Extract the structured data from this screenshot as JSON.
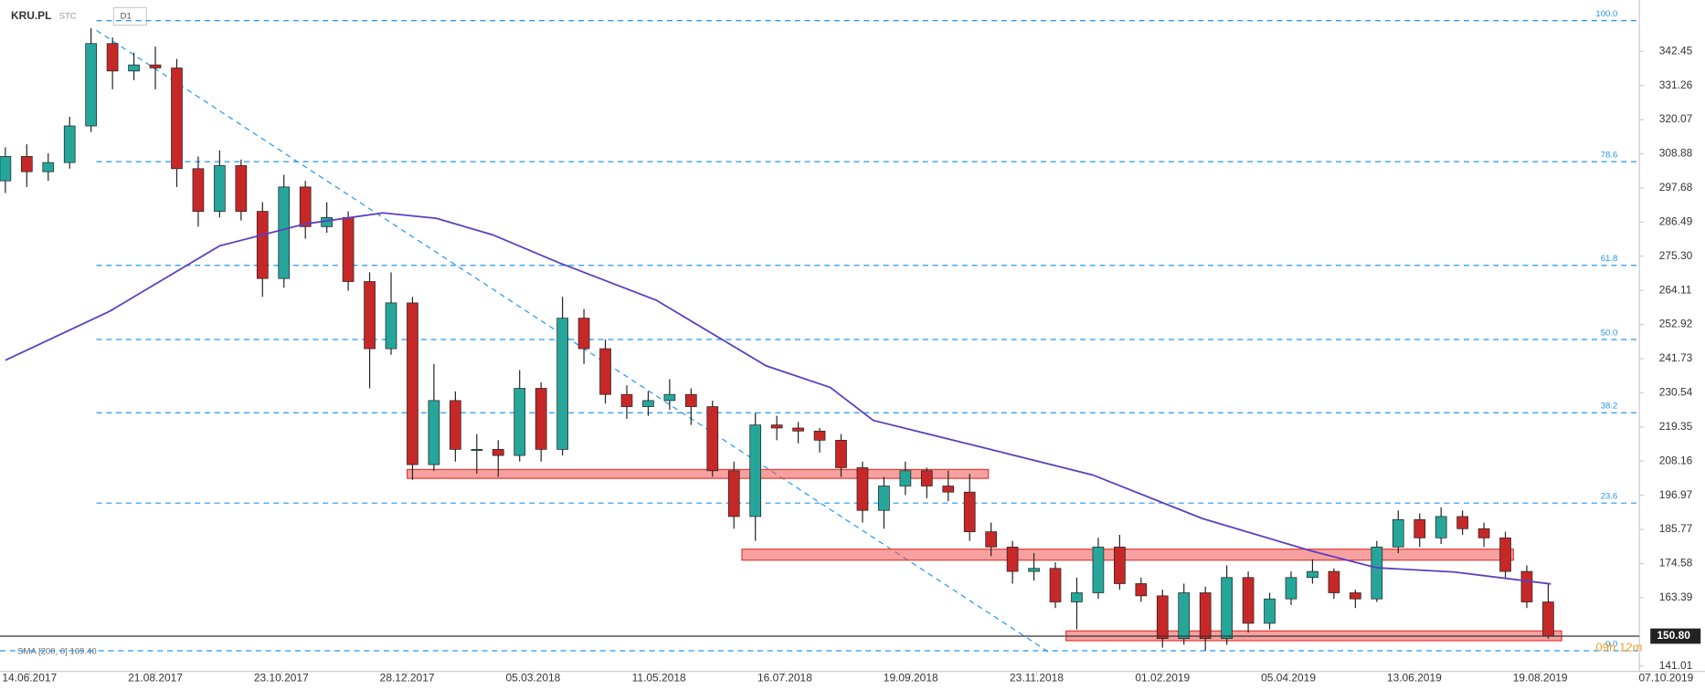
{
  "chart_data": {
    "type": "candlestick",
    "symbol": "KRU.PL",
    "source": "STC",
    "interval": "D1",
    "sma": {
      "name": "SMA [200, 0] 169.40",
      "color": "#5b3fc4",
      "x": [
        2,
        41,
        82,
        114,
        143,
        163,
        184,
        208,
        245,
        286,
        310,
        326,
        367,
        408,
        449,
        490,
        514,
        543,
        579
      ],
      "values": [
        241.2,
        257.3,
        278.7,
        285.9,
        289.5,
        287.7,
        282.3,
        273.4,
        260.9,
        239.4,
        232.3,
        221.5,
        212.6,
        203.6,
        189.3,
        178.6,
        173.2,
        171.8,
        167.9
      ]
    },
    "x": [
      2,
      10,
      18,
      26,
      34,
      42,
      50,
      58,
      66,
      74,
      82,
      90,
      98,
      106,
      114,
      122,
      130,
      138,
      146,
      154,
      162,
      170,
      178,
      186,
      194,
      202,
      210,
      218,
      226,
      234,
      242,
      250,
      258,
      266,
      274,
      282,
      290,
      298,
      306,
      314,
      322,
      330,
      338,
      346,
      354,
      362,
      370,
      378,
      386,
      394,
      402,
      410,
      418,
      426,
      434,
      442,
      450,
      458,
      466,
      474,
      482,
      490,
      498,
      506,
      514,
      522,
      530,
      538,
      546,
      554,
      562,
      570,
      578
    ],
    "open": [
      300,
      308,
      303,
      306,
      318,
      345,
      336,
      338,
      337,
      304,
      290,
      305,
      290,
      268,
      298,
      285,
      288,
      267,
      245,
      260,
      207,
      228,
      212,
      212,
      210,
      232,
      212,
      255,
      245,
      230,
      226,
      228,
      230,
      226,
      205,
      190,
      220,
      219,
      218,
      215,
      206,
      192,
      200,
      205,
      200,
      198,
      185,
      180,
      172,
      173,
      162,
      165,
      180,
      168,
      164,
      150,
      165,
      150,
      170,
      155,
      163,
      170,
      172,
      165,
      163,
      180,
      189,
      183,
      190,
      186,
      183,
      172,
      162
    ],
    "high": [
      311,
      312,
      309,
      321,
      350,
      347,
      342,
      344,
      340,
      308,
      310,
      307,
      293,
      302,
      300,
      293,
      290,
      270,
      270,
      262,
      240,
      231,
      217,
      215,
      238,
      234,
      262,
      258,
      248,
      233,
      231,
      235,
      232,
      228,
      208,
      224,
      223,
      221,
      219,
      217,
      208,
      203,
      208,
      206,
      205,
      204,
      188,
      182,
      178,
      175,
      170,
      183,
      184,
      170,
      166,
      168,
      167,
      174,
      172,
      165,
      172,
      176,
      173,
      166,
      182,
      192,
      191,
      193,
      192,
      188,
      185,
      174,
      168
    ],
    "low": [
      296,
      298,
      300,
      304,
      316,
      330,
      333,
      330,
      298,
      285,
      288,
      287,
      262,
      265,
      281,
      283,
      264,
      232,
      243,
      202,
      205,
      208,
      204,
      203,
      208,
      208,
      210,
      240,
      227,
      222,
      223,
      225,
      220,
      203,
      186,
      182,
      215,
      214,
      211,
      203,
      188,
      186,
      197,
      196,
      195,
      182,
      177,
      168,
      169,
      160,
      153,
      163,
      166,
      162,
      147,
      148,
      146,
      148,
      152,
      153,
      161,
      168,
      163,
      160,
      162,
      178,
      180,
      181,
      184,
      180,
      170,
      160,
      150
    ],
    "close": [
      308,
      303,
      306,
      318,
      345,
      336,
      338,
      337,
      304,
      290,
      305,
      290,
      268,
      298,
      285,
      288,
      267,
      245,
      260,
      207,
      228,
      212,
      212,
      210,
      232,
      212,
      255,
      245,
      230,
      226,
      228,
      230,
      226,
      205,
      190,
      220,
      219,
      218,
      215,
      206,
      192,
      200,
      205,
      200,
      198,
      185,
      180,
      172,
      173,
      162,
      165,
      180,
      168,
      164,
      150,
      165,
      150,
      170,
      155,
      163,
      170,
      172,
      165,
      163,
      180,
      189,
      183,
      190,
      186,
      183,
      172,
      162,
      150.8
    ],
    "up_color": "#26a69a",
    "down_color": "#c62828",
    "zones": [
      {
        "x": [
          152,
          369
        ],
        "y": [
          202.5,
          205.4
        ]
      },
      {
        "x": [
          277,
          565
        ],
        "y": [
          175.7,
          179.3
        ]
      },
      {
        "x": [
          398,
          583
        ],
        "y": [
          149.3,
          152.5
        ]
      }
    ],
    "trendline": {
      "x": [
        36,
        392
      ],
      "y": [
        349.3,
        145.3
      ]
    },
    "fib_levels": [
      {
        "value": 352.5,
        "label": "100.0"
      },
      {
        "value": 306.3,
        "label": "78.6"
      },
      {
        "value": 272.3,
        "label": "61.8"
      },
      {
        "value": 248.0,
        "label": "50.0"
      },
      {
        "value": 224.0,
        "label": "38.2"
      },
      {
        "value": 194.4,
        "label": "23.6"
      },
      {
        "value": 146.0,
        "label": "0.0"
      }
    ],
    "last_price": {
      "value": 150.8,
      "label": "150.80"
    },
    "countdown": "09h 12m",
    "xlim": [
      0,
      630
    ],
    "ylim": [
      139.23,
      359.27
    ],
    "yticks": [
      342.45,
      331.26,
      320.07,
      308.88,
      297.68,
      286.49,
      {
        "value": 275.3,
        "label": "275.30"
      },
      264.11,
      252.92,
      241.73,
      230.54,
      219.35,
      208.16,
      196.97,
      185.77,
      174.58,
      163.39,
      141.01
    ],
    "xticks": [
      {
        "value": 11,
        "label": "14.06.2017"
      },
      {
        "value": 58,
        "label": "21.08.2017"
      },
      {
        "value": 105,
        "label": "23.10.2017"
      },
      {
        "value": 152,
        "label": "28.12.2017"
      },
      {
        "value": 199,
        "label": "05.03.2018"
      },
      {
        "value": 246,
        "label": "11.05.2018"
      },
      {
        "value": 293,
        "label": "16.07.2018"
      },
      {
        "value": 340,
        "label": "19.09.2018"
      },
      {
        "value": 387,
        "label": "23.11.2018"
      },
      {
        "value": 434,
        "label": "01.02.2019"
      },
      {
        "value": 481,
        "label": "05.04.2019"
      },
      {
        "value": 528,
        "label": "13.06.2019"
      },
      {
        "value": 575,
        "label": "19.08.2019"
      },
      {
        "value": 622,
        "label": "07.10.2019"
      }
    ]
  }
}
